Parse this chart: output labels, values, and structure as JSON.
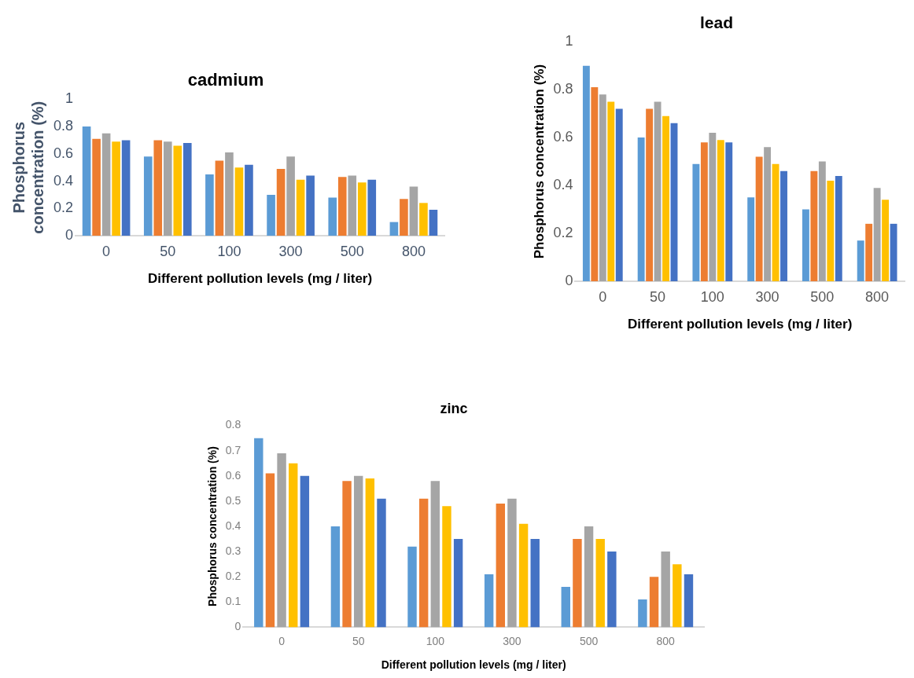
{
  "chart_data": [
    {
      "type": "bar",
      "title": "cadmium",
      "xlabel": "Different pollution levels (mg / liter)",
      "ylabel": "Phosphorus concentration (%)",
      "categories": [
        "0",
        "50",
        "100",
        "300",
        "500",
        "800"
      ],
      "ylim": [
        0,
        1
      ],
      "yticks": [
        0,
        0.2,
        0.4,
        0.6,
        0.8,
        1
      ],
      "series": [
        {
          "color": "#5b9bd5",
          "values": [
            0.8,
            0.58,
            0.45,
            0.3,
            0.28,
            0.1
          ]
        },
        {
          "color": "#ed7d31",
          "values": [
            0.71,
            0.7,
            0.55,
            0.49,
            0.43,
            0.27
          ]
        },
        {
          "color": "#a5a5a5",
          "values": [
            0.75,
            0.69,
            0.61,
            0.58,
            0.44,
            0.36
          ]
        },
        {
          "color": "#ffc000",
          "values": [
            0.69,
            0.66,
            0.5,
            0.41,
            0.39,
            0.24
          ]
        },
        {
          "color": "#4472c4",
          "values": [
            0.7,
            0.68,
            0.52,
            0.44,
            0.41,
            0.19
          ]
        }
      ]
    },
    {
      "type": "bar",
      "title": "lead",
      "xlabel": "Different pollution levels (mg / liter)",
      "ylabel": "Phosphorus concentration (%)",
      "categories": [
        "0",
        "50",
        "100",
        "300",
        "500",
        "800"
      ],
      "ylim": [
        0,
        1
      ],
      "yticks": [
        0,
        0.2,
        0.4,
        0.6,
        0.8,
        1
      ],
      "series": [
        {
          "color": "#5b9bd5",
          "values": [
            0.9,
            0.6,
            0.49,
            0.35,
            0.3,
            0.17
          ]
        },
        {
          "color": "#ed7d31",
          "values": [
            0.81,
            0.72,
            0.58,
            0.52,
            0.46,
            0.24
          ]
        },
        {
          "color": "#a5a5a5",
          "values": [
            0.78,
            0.75,
            0.62,
            0.56,
            0.5,
            0.39
          ]
        },
        {
          "color": "#ffc000",
          "values": [
            0.75,
            0.69,
            0.59,
            0.49,
            0.42,
            0.34
          ]
        },
        {
          "color": "#4472c4",
          "values": [
            0.72,
            0.66,
            0.58,
            0.46,
            0.44,
            0.24
          ]
        }
      ]
    },
    {
      "type": "bar",
      "title": "zinc",
      "xlabel": "Different pollution levels (mg / liter)",
      "ylabel": "Phosphorus concentration (%)",
      "categories": [
        "0",
        "50",
        "100",
        "300",
        "500",
        "800"
      ],
      "ylim": [
        0,
        0.8
      ],
      "yticks": [
        0,
        0.1,
        0.2,
        0.3,
        0.4,
        0.5,
        0.6,
        0.7,
        0.8
      ],
      "series": [
        {
          "color": "#5b9bd5",
          "values": [
            0.75,
            0.4,
            0.32,
            0.21,
            0.16,
            0.11
          ]
        },
        {
          "color": "#ed7d31",
          "values": [
            0.61,
            0.58,
            0.51,
            0.49,
            0.35,
            0.2
          ]
        },
        {
          "color": "#a5a5a5",
          "values": [
            0.69,
            0.6,
            0.58,
            0.51,
            0.4,
            0.3
          ]
        },
        {
          "color": "#ffc000",
          "values": [
            0.65,
            0.59,
            0.48,
            0.41,
            0.35,
            0.25
          ]
        },
        {
          "color": "#4472c4",
          "values": [
            0.6,
            0.51,
            0.35,
            0.35,
            0.3,
            0.21
          ]
        }
      ]
    }
  ]
}
